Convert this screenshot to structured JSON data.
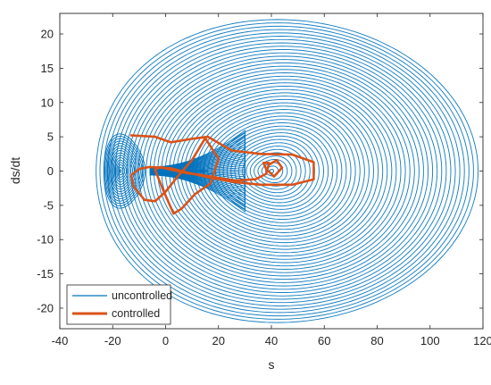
{
  "chart_data": {
    "type": "line",
    "title": "",
    "xlabel": "s",
    "ylabel": "ds/dt",
    "xlim": [
      -40,
      120
    ],
    "ylim": [
      -23,
      23
    ],
    "xticks": [
      "-40",
      "-20",
      "0",
      "20",
      "40",
      "60",
      "80",
      "100",
      "120"
    ],
    "yticks": [
      "-20",
      "-15",
      "-10",
      "-5",
      "0",
      "5",
      "10",
      "15",
      "20"
    ],
    "grid": false,
    "box": true,
    "legend_position": "bottom-left",
    "series": [
      {
        "name": "uncontrolled",
        "color": "#0072BD",
        "description_points": {
          "x_extent": [
            -25,
            113
          ],
          "y_extent": [
            -22,
            22
          ],
          "left_lobe_center": [
            -22,
            0
          ],
          "left_lobe_half_height": 5.5,
          "right_lobe_center": [
            40,
            0
          ],
          "right_lobe_max_point": [
            86,
            22
          ],
          "waist_point": [
            -5,
            0
          ],
          "loop_count_estimate": 45
        }
      },
      {
        "name": "controlled",
        "color": "#D95319",
        "path": [
          [
            -13,
            5.2
          ],
          [
            -4,
            5.0
          ],
          [
            2,
            4.2
          ],
          [
            10,
            4.7
          ],
          [
            16,
            5.0
          ],
          [
            25,
            3.0
          ],
          [
            36,
            2.5
          ],
          [
            48,
            2.4
          ],
          [
            56,
            1.3
          ],
          [
            56,
            -1.2
          ],
          [
            48,
            -2.0
          ],
          [
            36,
            -2.0
          ],
          [
            26,
            -1.6
          ],
          [
            16,
            -0.9
          ],
          [
            8,
            -0.2
          ],
          [
            2,
            0.4
          ],
          [
            -6,
            0.6
          ],
          [
            -10,
            0.3
          ],
          [
            -13,
            -0.6
          ],
          [
            -12,
            -2.3
          ],
          [
            -8,
            -4.2
          ],
          [
            -4,
            -4.4
          ],
          [
            0,
            -3.0
          ],
          [
            5,
            -0.6
          ],
          [
            10,
            1.6
          ],
          [
            15,
            4.8
          ],
          [
            20,
            1.8
          ],
          [
            17,
            -1.8
          ],
          [
            11,
            -3.4
          ],
          [
            6,
            -5.5
          ],
          [
            3,
            -6.2
          ],
          [
            -1,
            -2.7
          ],
          [
            -4,
            0.2
          ],
          [
            -2,
            0.6
          ],
          [
            2,
            0.2
          ],
          [
            8,
            -0.3
          ],
          [
            14,
            -0.6
          ],
          [
            26,
            -1.4
          ],
          [
            34,
            -1.2
          ],
          [
            38,
            -0.4
          ],
          [
            39,
            0.9
          ],
          [
            42,
            1.6
          ],
          [
            44,
            0.5
          ],
          [
            41,
            -0.8
          ],
          [
            38,
            0.3
          ],
          [
            37,
            1.2
          ],
          [
            39,
            1.2
          ]
        ]
      }
    ]
  }
}
